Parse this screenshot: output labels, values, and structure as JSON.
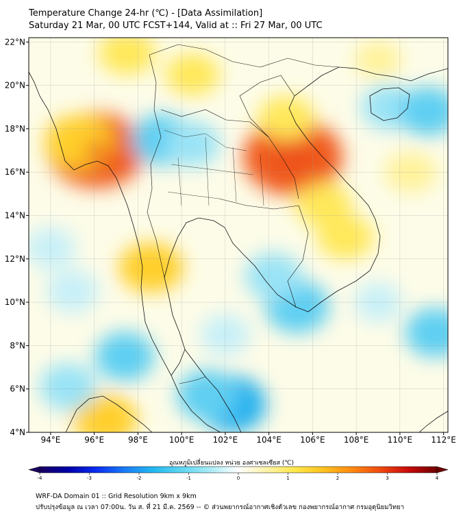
{
  "header": {
    "title": "Temperature Change 24-hr (℃) - [Data Assimilation]",
    "subtitle": "Saturday 21 Mar, 00 UTC FCST+144, Valid at :: Fri 27 Mar, 00 UTC"
  },
  "map": {
    "lon_range": [
      93,
      112.2
    ],
    "lat_range": [
      4,
      22.2
    ],
    "lon_ticks": [
      "94°E",
      "96°E",
      "98°E",
      "100°E",
      "102°E",
      "104°E",
      "106°E",
      "108°E",
      "110°E",
      "112°E"
    ],
    "lat_ticks": [
      "22°N",
      "20°N",
      "18°N",
      "16°N",
      "14°N",
      "12°N",
      "10°N",
      "8°N",
      "6°N",
      "4°N"
    ],
    "grid": true,
    "hotspots": [
      {
        "lon": 96.1,
        "lat": 17.0,
        "value": 2.6
      },
      {
        "lon": 105.1,
        "lat": 16.7,
        "value": 2.7
      },
      {
        "lon": 95.3,
        "lat": 17.4,
        "value": 1.5
      },
      {
        "lon": 97.5,
        "lat": 21.5,
        "value": 1.0
      },
      {
        "lon": 100.5,
        "lat": 20.5,
        "value": 0.9
      },
      {
        "lon": 106.5,
        "lat": 14.5,
        "value": 1.0
      },
      {
        "lon": 107.5,
        "lat": 13.0,
        "value": 1.0
      },
      {
        "lon": 98.6,
        "lat": 11.6,
        "value": 1.3
      },
      {
        "lon": 96.5,
        "lat": 4.6,
        "value": 1.3
      },
      {
        "lon": 104.8,
        "lat": 18.5,
        "value": 1.0
      },
      {
        "lon": 110.5,
        "lat": 16.0,
        "value": 0.8
      },
      {
        "lon": 109.0,
        "lat": 21.2,
        "value": 0.6
      }
    ],
    "coldspots": [
      {
        "lon": 102.3,
        "lat": 5.3,
        "value": -1.4
      },
      {
        "lon": 101.2,
        "lat": 5.7,
        "value": -1.1
      },
      {
        "lon": 105.3,
        "lat": 9.8,
        "value": -1.2
      },
      {
        "lon": 104.2,
        "lat": 11.2,
        "value": -0.9
      },
      {
        "lon": 99.1,
        "lat": 17.5,
        "value": -1.1
      },
      {
        "lon": 100.5,
        "lat": 17.3,
        "value": -0.8
      },
      {
        "lon": 97.4,
        "lat": 7.5,
        "value": -1.0
      },
      {
        "lon": 94.8,
        "lat": 6.1,
        "value": -0.9
      },
      {
        "lon": 109.5,
        "lat": 19.0,
        "value": -0.8
      },
      {
        "lon": 111.3,
        "lat": 18.8,
        "value": -1.0
      },
      {
        "lon": 111.6,
        "lat": 8.6,
        "value": -1.0
      },
      {
        "lon": 102.0,
        "lat": 8.5,
        "value": -0.6
      },
      {
        "lon": 95.0,
        "lat": 10.5,
        "value": -0.7
      },
      {
        "lon": 94.0,
        "lat": 12.5,
        "value": -0.6
      },
      {
        "lon": 109.0,
        "lat": 10.0,
        "value": -0.5
      }
    ]
  },
  "colorbar": {
    "title": "อุณหภูมิเปลี่ยนแปลง หน่วย องศาเซลเซียส (℃)",
    "min": -4,
    "max": 4,
    "ticks": [
      "-4",
      "-3",
      "-2",
      "-1",
      "0",
      "1",
      "2",
      "3",
      "4"
    ],
    "colors": [
      "#1a0060",
      "#0000a8",
      "#0a2ef0",
      "#1a7cf5",
      "#22b8f0",
      "#5fd6f2",
      "#a8ecf7",
      "#ffffff",
      "#fff3a8",
      "#ffe84a",
      "#ffc21f",
      "#ff8a10",
      "#f04a10",
      "#c80a0a",
      "#700000"
    ]
  },
  "footer": {
    "line1": "WRF-DA Domain 01 :: Grid Resolution 9km x 9km",
    "line2": "ปรับปรุงข้อมูล ณ เวลา 07:00น. วัน ส. ที่ 21 มี.ค. 2569 -- © ส่วนพยากรณ์อากาศเชิงตัวเลข กองพยากรณ์อากาศ กรมอุตุนิยมวิทยา"
  }
}
